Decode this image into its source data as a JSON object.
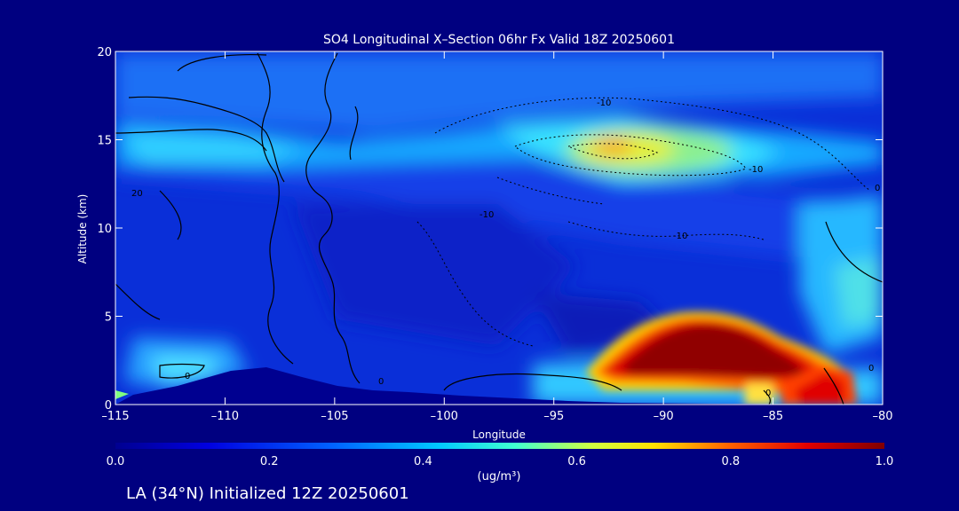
{
  "chart_data": {
    "type": "heatmap",
    "title": "SO4 Longitudinal X–Section 06hr  Fx Valid 18Z 20250601",
    "xlabel": "Longitude",
    "ylabel": "Altitude (km)",
    "xlim": [
      -115,
      -80
    ],
    "ylim": [
      0,
      20
    ],
    "x_ticks": [
      -115,
      -110,
      -105,
      -100,
      -95,
      -90,
      -85,
      -80
    ],
    "x_tick_labels": [
      "–115",
      "–110",
      "–105",
      "–100",
      "–95",
      "–90",
      "–85",
      "–80"
    ],
    "y_ticks": [
      0,
      5,
      10,
      15,
      20
    ],
    "y_tick_labels": [
      "0",
      "5",
      "10",
      "15",
      "20"
    ],
    "colorbar": {
      "min": 0.0,
      "max": 1.0,
      "ticks": [
        0.0,
        0.2,
        0.4,
        0.6,
        0.8,
        1.0
      ],
      "tick_labels": [
        "0.0",
        "0.2",
        "0.4",
        "0.6",
        "0.8",
        "1.0"
      ],
      "units": "(ug/m³)",
      "colormap": "blue-cyan-yellow-red"
    },
    "contour_labels": [
      "-10",
      "-10",
      "-10",
      "-10",
      "20",
      "0",
      "0",
      "0",
      "0",
      "0"
    ],
    "features": [
      {
        "name": "surface plume",
        "lon": [
          -94,
          -82
        ],
        "alt": [
          0.5,
          4.5
        ],
        "value": 1.0
      },
      {
        "name": "upper-level maximum",
        "lon": [
          -95,
          -88
        ],
        "alt": [
          13,
          16
        ],
        "value": 0.7
      }
    ]
  },
  "footer": "LA (34°N) Initialized 12Z 20250601",
  "colors": {
    "background": "#000080",
    "text": "#ffffff",
    "contour": "#000000"
  }
}
